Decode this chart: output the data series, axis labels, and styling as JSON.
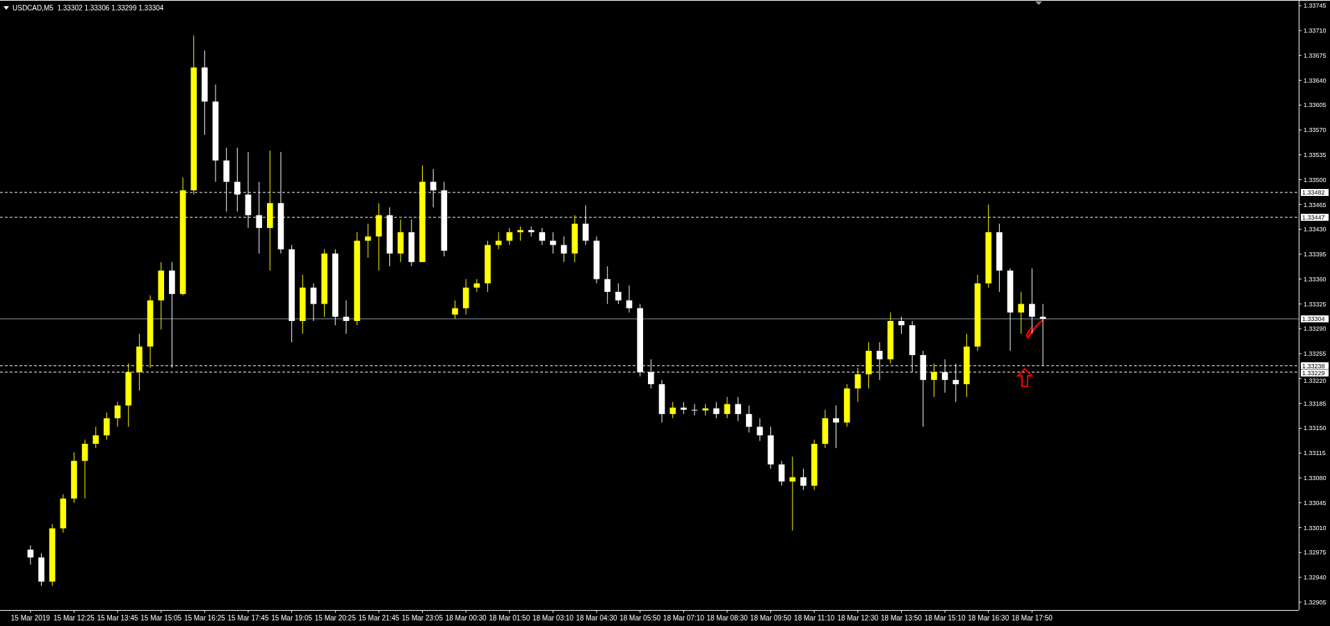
{
  "chart_data": {
    "type": "candlestick",
    "title": "USDCAD,M5  1.33302 1.33306 1.33299 1.33304",
    "categories": [
      "15 Mar 2019",
      null,
      null,
      null,
      "15 Mar 12:25",
      null,
      null,
      null,
      "15 Mar 13:45",
      null,
      null,
      null,
      "15 Mar 15:05",
      null,
      null,
      null,
      "15 Mar 16:25",
      null,
      null,
      null,
      "15 Mar 17:45",
      null,
      null,
      null,
      "15 Mar 19:05",
      null,
      null,
      null,
      "15 Mar 20:25",
      null,
      null,
      null,
      "15 Mar 21:45",
      null,
      null,
      null,
      "15 Mar 23:05",
      null,
      null,
      null,
      "18 Mar 00:30",
      null,
      null,
      null,
      "18 Mar 01:50",
      null,
      null,
      null,
      "18 Mar 03:10",
      null,
      null,
      null,
      "18 Mar 04:30",
      null,
      null,
      null,
      "18 Mar 05:50",
      null,
      null,
      null,
      "18 Mar 07:10",
      null,
      null,
      null,
      "18 Mar 08:30",
      null,
      null,
      null,
      "18 Mar 09:50",
      null,
      null,
      null,
      "18 Mar 11:10",
      null,
      null,
      null,
      "18 Mar 12:30",
      null,
      null,
      null,
      "18 Mar 13:50",
      null,
      null,
      null,
      "18 Mar 15:10",
      null,
      null,
      null,
      "18 Mar 16:30",
      null,
      null,
      null,
      "18 Mar 17:50",
      null,
      null,
      null,
      null,
      null,
      null,
      null,
      null,
      null,
      null,
      null,
      null,
      null,
      null,
      null,
      null,
      null,
      null,
      null,
      null,
      null,
      null,
      null,
      null
    ],
    "ohlc": [
      [
        1.32979,
        1.32985,
        1.32958,
        1.32968
      ],
      [
        1.32968,
        1.32974,
        1.32928,
        1.32934
      ],
      [
        1.32934,
        1.33015,
        1.32928,
        1.33009
      ],
      [
        1.33009,
        1.33057,
        1.33003,
        1.33051
      ],
      [
        1.33051,
        1.33116,
        1.33045,
        1.33104
      ],
      [
        1.33104,
        1.33134,
        1.33051,
        1.33128
      ],
      [
        1.33128,
        1.33152,
        1.33122,
        1.3314
      ],
      [
        1.3314,
        1.33172,
        1.33134,
        1.33164
      ],
      [
        1.33164,
        1.33187,
        1.33152,
        1.33182
      ],
      [
        1.33182,
        1.33241,
        1.33152,
        1.33229
      ],
      [
        1.33229,
        1.33283,
        1.33203,
        1.33265
      ],
      [
        1.33265,
        1.33337,
        1.33235,
        1.3333
      ],
      [
        1.3333,
        1.33384,
        1.33289,
        1.33372
      ],
      [
        1.33372,
        1.33384,
        1.33235,
        1.33339
      ],
      [
        1.33339,
        1.33503,
        1.33337,
        1.33485
      ],
      [
        1.33485,
        1.33703,
        1.33479,
        1.33658
      ],
      [
        1.33658,
        1.33682,
        1.33563,
        1.3361
      ],
      [
        1.3361,
        1.33634,
        1.33497,
        1.33527
      ],
      [
        1.33527,
        1.33545,
        1.33455,
        1.33497
      ],
      [
        1.33497,
        1.33545,
        1.33455,
        1.33479
      ],
      [
        1.33479,
        1.33539,
        1.33432,
        1.3345
      ],
      [
        1.3345,
        1.33497,
        1.33396,
        1.33432
      ],
      [
        1.33432,
        1.33541,
        1.33372,
        1.33467
      ],
      [
        1.33467,
        1.33539,
        1.33396,
        1.33402
      ],
      [
        1.33402,
        1.33408,
        1.33271,
        1.33301
      ],
      [
        1.33301,
        1.33366,
        1.33283,
        1.33348
      ],
      [
        1.33348,
        1.33354,
        1.33301,
        1.33325
      ],
      [
        1.33325,
        1.33402,
        1.33307,
        1.33396
      ],
      [
        1.33396,
        1.33402,
        1.33295,
        1.33307
      ],
      [
        1.33307,
        1.3333,
        1.33283,
        1.33301
      ],
      [
        1.33301,
        1.33426,
        1.33295,
        1.33414
      ],
      [
        1.33414,
        1.33438,
        1.3339,
        1.3342
      ],
      [
        1.3342,
        1.33467,
        1.33372,
        1.3345
      ],
      [
        1.3345,
        1.33461,
        1.33378,
        1.33396
      ],
      [
        1.33396,
        1.33444,
        1.33384,
        1.33426
      ],
      [
        1.33426,
        1.33444,
        1.33378,
        1.33384
      ],
      [
        1.33384,
        1.3352,
        1.33384,
        1.33497
      ],
      [
        1.33497,
        1.33515,
        1.33461,
        1.33485
      ],
      [
        1.33485,
        1.33497,
        1.33392,
        1.334
      ],
      [
        1.3331,
        1.3333,
        1.33304,
        1.33319
      ],
      [
        1.33319,
        1.3336,
        1.3331,
        1.33348
      ],
      [
        1.33348,
        1.3336,
        1.33342,
        1.33354
      ],
      [
        1.33354,
        1.33414,
        1.33342,
        1.33408
      ],
      [
        1.33408,
        1.33426,
        1.33402,
        1.33414
      ],
      [
        1.33414,
        1.33432,
        1.33408,
        1.33426
      ],
      [
        1.33426,
        1.33434,
        1.33414,
        1.33429
      ],
      [
        1.33429,
        1.33434,
        1.3342,
        1.33426
      ],
      [
        1.33426,
        1.33432,
        1.33408,
        1.33414
      ],
      [
        1.33414,
        1.33426,
        1.33396,
        1.33408
      ],
      [
        1.33408,
        1.3342,
        1.33384,
        1.33396
      ],
      [
        1.33396,
        1.3345,
        1.33384,
        1.33438
      ],
      [
        1.33438,
        1.33464,
        1.33408,
        1.33414
      ],
      [
        1.33414,
        1.3342,
        1.33354,
        1.3336
      ],
      [
        1.3336,
        1.33378,
        1.33325,
        1.33342
      ],
      [
        1.33342,
        1.33354,
        1.33325,
        1.3333
      ],
      [
        1.3333,
        1.33351,
        1.33313,
        1.33319
      ],
      [
        1.33319,
        1.33325,
        1.33223,
        1.33229
      ],
      [
        1.33229,
        1.33247,
        1.33206,
        1.33212
      ],
      [
        1.33212,
        1.33218,
        1.33158,
        1.3317
      ],
      [
        1.3317,
        1.33187,
        1.33164,
        1.33179
      ],
      [
        1.33179,
        1.33187,
        1.3317,
        1.33176
      ],
      [
        1.33176,
        1.33184,
        1.33168,
        1.33175
      ],
      [
        1.33175,
        1.33184,
        1.33168,
        1.33178
      ],
      [
        1.33178,
        1.33187,
        1.33164,
        1.3317
      ],
      [
        1.3317,
        1.33194,
        1.33164,
        1.33184
      ],
      [
        1.33184,
        1.33194,
        1.3316,
        1.3317
      ],
      [
        1.3317,
        1.33182,
        1.33144,
        1.33152
      ],
      [
        1.33152,
        1.33164,
        1.33132,
        1.3314
      ],
      [
        1.3314,
        1.33152,
        1.33093,
        1.33099
      ],
      [
        1.33099,
        1.33104,
        1.33069,
        1.33075
      ],
      [
        1.33075,
        1.3311,
        1.33006,
        1.33081
      ],
      [
        1.33081,
        1.33093,
        1.33063,
        1.33069
      ],
      [
        1.33069,
        1.33134,
        1.33063,
        1.33128
      ],
      [
        1.33128,
        1.33176,
        1.33122,
        1.33164
      ],
      [
        1.33164,
        1.33182,
        1.33122,
        1.33158
      ],
      [
        1.33158,
        1.33212,
        1.33152,
        1.33206
      ],
      [
        1.33206,
        1.33235,
        1.33187,
        1.33226
      ],
      [
        1.33226,
        1.33271,
        1.33206,
        1.33259
      ],
      [
        1.33259,
        1.33271,
        1.33218,
        1.33247
      ],
      [
        1.33247,
        1.33313,
        1.33241,
        1.33301
      ],
      [
        1.33301,
        1.33307,
        1.33283,
        1.33295
      ],
      [
        1.33295,
        1.33301,
        1.33229,
        1.33253
      ],
      [
        1.33253,
        1.33259,
        1.33152,
        1.33218
      ],
      [
        1.33218,
        1.33241,
        1.33194,
        1.33229
      ],
      [
        1.33229,
        1.33247,
        1.332,
        1.33218
      ],
      [
        1.33218,
        1.33241,
        1.33187,
        1.33212
      ],
      [
        1.33212,
        1.33283,
        1.33194,
        1.33265
      ],
      [
        1.33265,
        1.33366,
        1.33259,
        1.33354
      ],
      [
        1.33354,
        1.33465,
        1.33348,
        1.33426
      ],
      [
        1.33426,
        1.33438,
        1.33342,
        1.33372
      ],
      [
        1.33372,
        1.33375,
        1.33259,
        1.33313
      ],
      [
        1.33313,
        1.33342,
        1.33283,
        1.33325
      ],
      [
        1.33325,
        1.33375,
        1.33283,
        1.33307
      ],
      [
        1.33307,
        1.33325,
        1.33238,
        1.33304
      ],
      null,
      null,
      null,
      null,
      null,
      null,
      null,
      null,
      null,
      null,
      null,
      null,
      null,
      null,
      null,
      null,
      null,
      null,
      null,
      null,
      null,
      null,
      null
    ],
    "colors": [
      "#ffffff",
      "#ffffff",
      "#ffff00",
      "#ffff00",
      "#ffff00",
      "#ffff00",
      "#ffff00",
      "#ffff00",
      "#ffff00",
      "#ffff00",
      "#ffff00",
      "#ffff00",
      "#ffff00",
      "#ffffff",
      "#ffff00",
      "#ffff00",
      "#ffffff",
      "#ffffff",
      "#ffffff",
      "#ffffff",
      "#ffffff",
      "#ffffff",
      "#ffff00",
      "#ffffff",
      "#ffffff",
      "#ffff00",
      "#ffffff",
      "#ffff00",
      "#ffffff",
      "#ffffff",
      "#ffff00",
      "#ffff00",
      "#ffff00",
      "#ffffff",
      "#ffff00",
      "#ffffff",
      "#ffff00",
      "#ffffff",
      "#ffffff",
      "#ffff00",
      "#ffff00",
      "#ffff00",
      "#ffff00",
      "#ffff00",
      "#ffff00",
      "#ffff00",
      "#ffffff",
      "#ffffff",
      "#ffffff",
      "#ffffff",
      "#ffff00",
      "#ffffff",
      "#ffffff",
      "#ffffff",
      "#ffffff",
      "#ffffff",
      "#ffffff",
      "#ffffff",
      "#ffffff",
      "#ffff00",
      "#ffffff",
      "#ffffff",
      "#ffff00",
      "#ffffff",
      "#ffff00",
      "#ffffff",
      "#ffffff",
      "#ffffff",
      "#ffffff",
      "#ffffff",
      "#ffff00",
      "#ffffff",
      "#ffff00",
      "#ffff00",
      "#ffffff",
      "#ffff00",
      "#ffff00",
      "#ffff00",
      "#ffffff",
      "#ffff00",
      "#ffffff",
      "#ffffff",
      "#ffffff",
      "#ffff00",
      "#ffffff",
      "#ffffff",
      "#ffff00",
      "#ffff00",
      "#ffff00",
      "#ffffff",
      "#ffffff",
      "#ffff00",
      "#ffffff",
      "#ffffff",
      null,
      null,
      null,
      null,
      null,
      null,
      null,
      null,
      null,
      null,
      null,
      null,
      null,
      null,
      null,
      null,
      null,
      null,
      null,
      null,
      null,
      null,
      null
    ],
    "ylim": [
      1.32894,
      1.33753
    ],
    "yticks": [
      1.32905,
      {
        "value": 1.3294,
        "label": "1.32940"
      },
      1.32975,
      {
        "value": 1.3301,
        "label": "1.33010"
      },
      1.33045,
      {
        "value": 1.3308,
        "label": "1.33080"
      },
      1.33115,
      {
        "value": 1.3315,
        "label": "1.33150"
      },
      1.33185,
      {
        "value": 1.3322,
        "label": "1.33220"
      },
      1.33255,
      {
        "value": 1.3329,
        "label": "1.33290"
      },
      1.33325,
      {
        "value": 1.3336,
        "label": "1.33360"
      },
      1.33395,
      {
        "value": 1.3343,
        "label": "1.33430"
      },
      1.33465,
      {
        "value": 1.335,
        "label": "1.33500"
      },
      1.33535,
      {
        "value": 1.3357,
        "label": "1.33570"
      },
      1.33605,
      {
        "value": 1.3364,
        "label": "1.33640"
      },
      1.33675,
      {
        "value": 1.3371,
        "label": "1.33710"
      },
      1.33745
    ],
    "ref_lines": [
      {
        "axis": "y",
        "value": 1.33482,
        "label": "1.33482",
        "color": "#ffffff",
        "line_style": "dashed"
      },
      {
        "axis": "y",
        "value": 1.33447,
        "label": "1.33447",
        "color": "#ffffff",
        "line_style": "dashed"
      },
      {
        "axis": "y",
        "value": 1.33304,
        "label": "1.33304",
        "color": "#8a9aaa",
        "line_style": "solid"
      },
      {
        "axis": "y",
        "value": 1.33238,
        "label": "1.33238",
        "color": "#ffffff",
        "line_style": "dashed"
      },
      {
        "axis": "y",
        "value": 1.33229,
        "label": "1.33229",
        "color": "#ffffff",
        "line_style": "dashed"
      }
    ],
    "grid": false
  }
}
